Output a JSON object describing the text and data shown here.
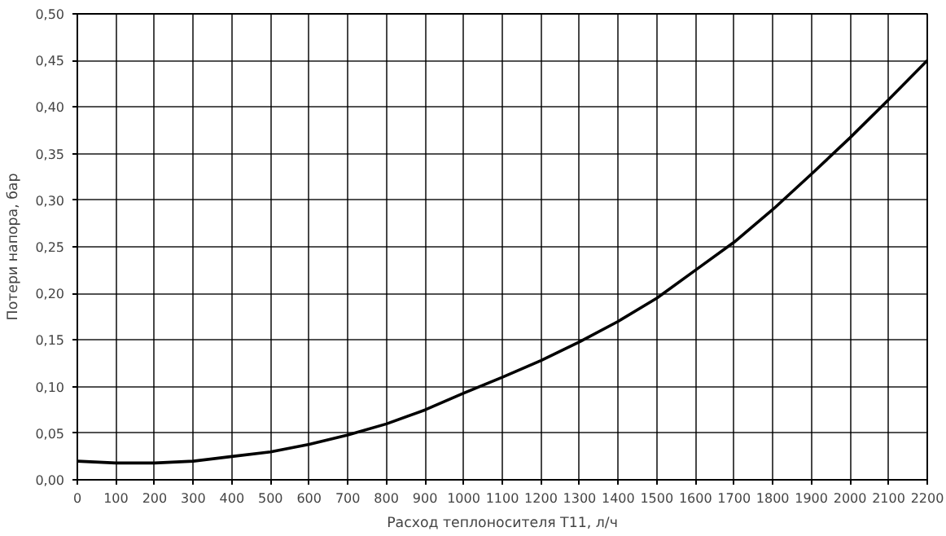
{
  "chart_data": {
    "type": "line",
    "xlabel": "Расход теплоносителя Т11, л/ч",
    "ylabel": "Потери напора, бар",
    "x": [
      0,
      100,
      200,
      300,
      400,
      500,
      600,
      700,
      800,
      900,
      1000,
      1100,
      1200,
      1300,
      1400,
      1500,
      1600,
      1700,
      1800,
      1900,
      2000,
      2100,
      2200
    ],
    "series": [
      {
        "color": "#000000",
        "values": [
          0.02,
          0.018,
          0.018,
          0.02,
          0.025,
          0.03,
          0.038,
          0.048,
          0.06,
          0.075,
          0.093,
          0.11,
          0.128,
          0.148,
          0.17,
          0.195,
          0.225,
          0.255,
          0.29,
          0.328,
          0.367,
          0.408,
          0.45
        ]
      }
    ],
    "xlim": [
      0,
      2200
    ],
    "ylim": [
      0,
      0.5
    ],
    "xticks": [
      0,
      100,
      200,
      300,
      400,
      500,
      600,
      700,
      800,
      900,
      1000,
      1100,
      1200,
      1300,
      1400,
      1500,
      1600,
      1700,
      1800,
      1900,
      2000,
      2100,
      2200
    ],
    "yticks": [
      {
        "value": 0,
        "label": "0,00"
      },
      {
        "value": 0.05,
        "label": "0,05"
      },
      {
        "value": 0.1,
        "label": "0,10"
      },
      {
        "value": 0.15,
        "label": "0,15"
      },
      {
        "value": 0.2,
        "label": "0,20"
      },
      {
        "value": 0.25,
        "label": "0,25"
      },
      {
        "value": 0.3,
        "label": "0,30"
      },
      {
        "value": 0.35,
        "label": "0,35"
      },
      {
        "value": 0.4,
        "label": "0,40"
      },
      {
        "value": 0.45,
        "label": "0,45"
      },
      {
        "value": 0.5,
        "label": "0,50"
      }
    ],
    "grid": true,
    "line_style": "solid"
  }
}
